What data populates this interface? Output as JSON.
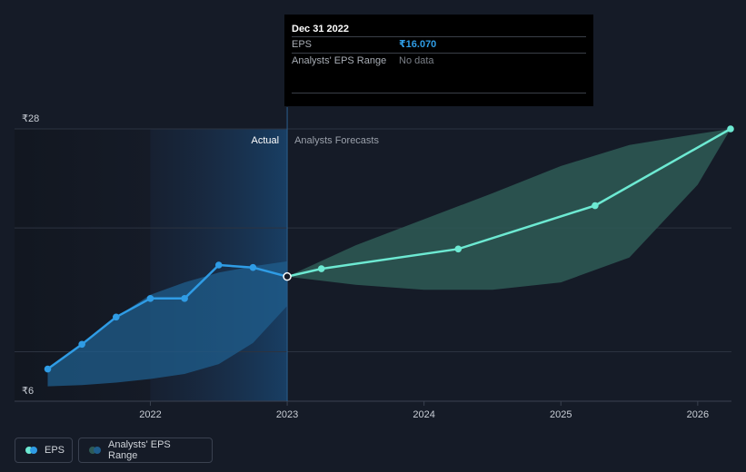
{
  "tooltip": {
    "date": "Dec 31 2022",
    "eps_label": "EPS",
    "eps_value": "₹16.070",
    "range_label": "Analysts' EPS Range",
    "range_value": "No data"
  },
  "region_labels": {
    "actual": "Actual",
    "forecast": "Analysts Forecasts"
  },
  "legend": {
    "eps": "EPS",
    "range": "Analysts' EPS Range"
  },
  "colors": {
    "eps_actual": "#2f9ce5",
    "eps_forecast": "#6de9d2",
    "range_actual": "#1f5d8c",
    "range_forecast": "#2e5a56",
    "background": "#151b27"
  },
  "chart_data": {
    "type": "line",
    "y_tick_labels": [
      "₹28",
      "₹6"
    ],
    "ylim": [
      6,
      28
    ],
    "x_tick_labels": [
      "2022",
      "2023",
      "2024",
      "2025",
      "2026"
    ],
    "xlim": [
      2021.22,
      2026.24
    ],
    "divider_x": 2023.0,
    "series": [
      {
        "name": "EPS",
        "segment": "actual",
        "points": [
          {
            "x": 2021.25,
            "y": 8.6
          },
          {
            "x": 2021.5,
            "y": 10.6
          },
          {
            "x": 2021.75,
            "y": 12.8
          },
          {
            "x": 2022.0,
            "y": 14.3
          },
          {
            "x": 2022.25,
            "y": 14.3
          },
          {
            "x": 2022.5,
            "y": 17.0
          },
          {
            "x": 2022.75,
            "y": 16.8
          },
          {
            "x": 2023.0,
            "y": 16.07
          }
        ]
      },
      {
        "name": "EPS",
        "segment": "forecast",
        "points": [
          {
            "x": 2023.0,
            "y": 16.07
          },
          {
            "x": 2023.25,
            "y": 16.7
          },
          {
            "x": 2024.25,
            "y": 18.3
          },
          {
            "x": 2025.25,
            "y": 21.8
          },
          {
            "x": 2026.24,
            "y": 28.0
          }
        ]
      }
    ],
    "range_actual": {
      "x": [
        2021.25,
        2021.5,
        2021.75,
        2022.0,
        2022.25,
        2022.5,
        2022.75,
        2023.0
      ],
      "low": [
        7.2,
        7.3,
        7.5,
        7.8,
        8.2,
        9.0,
        10.7,
        13.7
      ],
      "high": [
        8.6,
        10.6,
        12.8,
        14.6,
        15.6,
        16.4,
        16.9,
        17.3
      ]
    },
    "range_forecast": {
      "x": [
        2023.0,
        2023.5,
        2024.0,
        2024.5,
        2025.0,
        2025.5,
        2026.0,
        2026.24
      ],
      "low": [
        16.07,
        15.4,
        15.0,
        15.0,
        15.6,
        17.6,
        23.5,
        28.0
      ],
      "high": [
        16.07,
        18.6,
        20.7,
        22.8,
        25.0,
        26.7,
        27.6,
        28.0
      ]
    }
  }
}
